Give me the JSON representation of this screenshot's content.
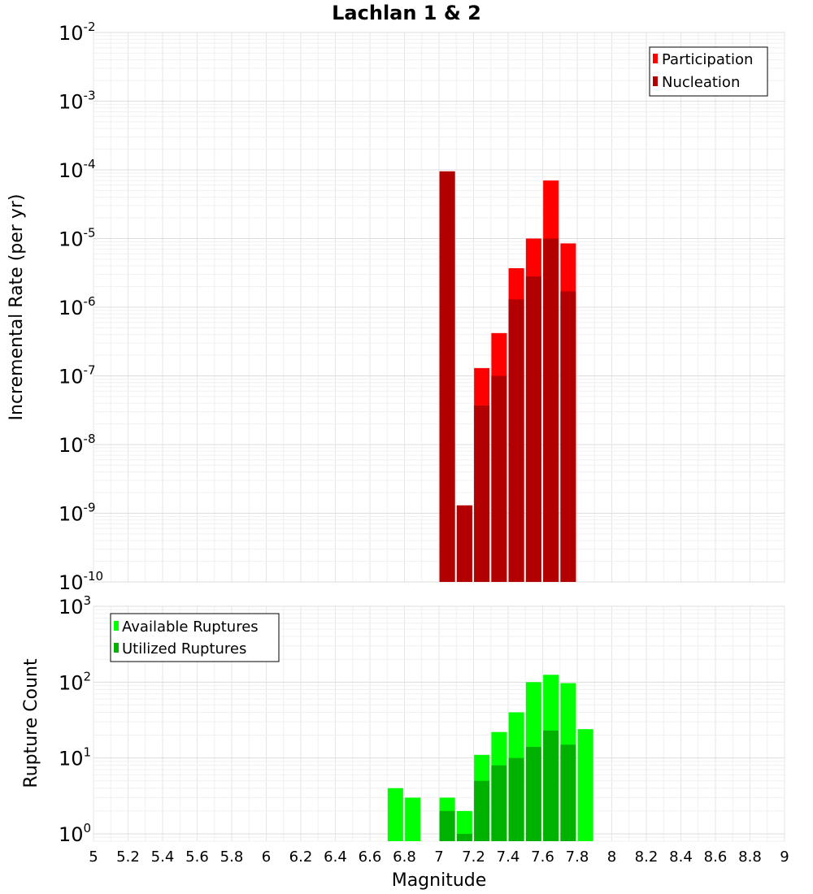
{
  "chart_data": [
    {
      "type": "bar",
      "title": "Lachlan 1 & 2",
      "xlabel": "",
      "ylabel": "Incremental Rate (per yr)",
      "yscale": "log",
      "ylim": [
        1e-10,
        0.01
      ],
      "xlim": [
        5,
        9
      ],
      "grid": true,
      "legend_position": "top-right",
      "x": [
        7.05,
        7.15,
        7.25,
        7.35,
        7.45,
        7.55,
        7.65,
        7.75
      ],
      "series": [
        {
          "name": "Participation",
          "color": "#ff0000",
          "values": [
            9.5e-05,
            1.3e-09,
            1.3e-07,
            4.2e-07,
            3.7e-06,
            1e-05,
            7e-05,
            8.5e-06
          ]
        },
        {
          "name": "Nucleation",
          "color": "#b20000",
          "values": [
            9.5e-05,
            1.3e-09,
            3.7e-08,
            1e-07,
            1.3e-06,
            2.8e-06,
            1e-05,
            1.7e-06
          ]
        }
      ],
      "y_tick_exponents": [
        "-2",
        "-3",
        "-4",
        "-5",
        "-6",
        "-7",
        "-8",
        "-9",
        "-10"
      ]
    },
    {
      "type": "bar",
      "title": "",
      "xlabel": "Magnitude",
      "ylabel": "Rupture Count",
      "yscale": "log",
      "ylim": [
        0.8,
        1000
      ],
      "xlim": [
        5,
        9
      ],
      "grid": true,
      "legend_position": "top-left",
      "x": [
        6.75,
        6.85,
        7.05,
        7.15,
        7.25,
        7.35,
        7.45,
        7.55,
        7.65,
        7.75,
        7.85
      ],
      "series": [
        {
          "name": "Available Ruptures",
          "color": "#00ff00",
          "values": [
            4,
            3,
            3,
            2,
            11,
            22,
            40,
            100,
            125,
            97,
            24
          ]
        },
        {
          "name": "Utilized Ruptures",
          "color": "#00b200",
          "values": [
            0,
            0,
            2,
            1,
            5,
            8,
            10,
            14,
            23,
            15,
            0
          ]
        }
      ],
      "y_tick_exponents": [
        "3",
        "2",
        "1",
        "0"
      ],
      "x_tick_labels": [
        "5",
        "5.2",
        "5.4",
        "5.6",
        "5.8",
        "6",
        "6.2",
        "6.4",
        "6.6",
        "6.8",
        "7",
        "7.2",
        "7.4",
        "7.6",
        "7.8",
        "8",
        "8.2",
        "8.4",
        "8.6",
        "8.8",
        "9"
      ]
    }
  ]
}
